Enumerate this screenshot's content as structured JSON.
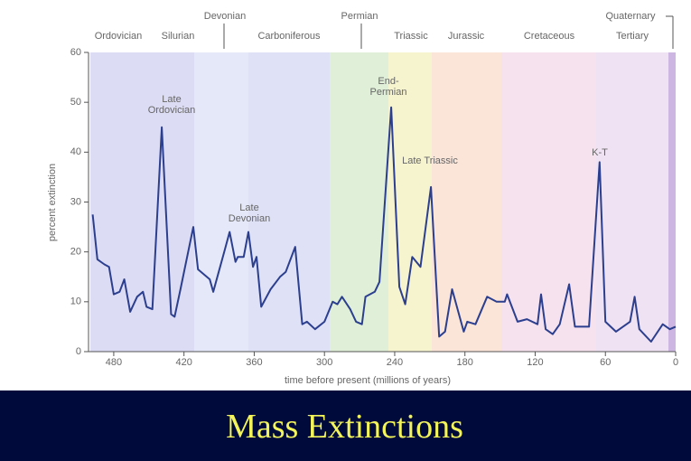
{
  "chart_data": {
    "type": "line",
    "title": "Mass Extinctions",
    "x_label": "time before present (millions of years)",
    "y_label": "percent extinction",
    "periods": [
      "Devonian",
      "Permian",
      "Quaternary",
      "Ordovician",
      "Silurian",
      "Carboniferous",
      "Triassic",
      "Jurassic",
      "Cretaceous",
      "Tertiary"
    ],
    "annotations": [
      "Late Ordovician",
      "Late Devonian",
      "End-Permian",
      "Late Triassic",
      "K-T"
    ],
    "x": [
      498,
      494,
      488,
      484,
      480,
      475,
      471,
      466,
      460,
      455,
      452,
      447,
      439,
      431,
      428,
      423,
      412,
      408,
      398,
      395,
      385,
      381,
      376,
      374,
      369,
      365,
      361,
      358,
      354,
      346,
      338,
      333,
      325,
      319,
      315,
      308,
      300,
      293,
      289,
      285,
      278,
      273,
      268,
      265,
      257,
      253,
      243,
      236,
      231,
      225,
      218,
      209,
      202,
      197,
      191,
      181,
      178,
      171,
      161,
      153,
      146,
      144,
      135,
      127,
      118,
      115,
      111,
      105,
      99,
      91,
      86,
      74,
      65,
      60,
      51,
      39,
      35,
      31,
      21,
      11,
      5,
      0
    ],
    "values": [
      27.5,
      18.5,
      17.5,
      17,
      11.5,
      12,
      14.5,
      8,
      11,
      12,
      9,
      8.5,
      45,
      7.5,
      7,
      12.5,
      25,
      16.5,
      14.5,
      12,
      20.5,
      24,
      18,
      19,
      19,
      24,
      17,
      19,
      9,
      12.5,
      15,
      16,
      21,
      5.5,
      6,
      4.5,
      6,
      10,
      9.5,
      11,
      8.5,
      6,
      5.5,
      11,
      12,
      14,
      49,
      13,
      9.5,
      19,
      17,
      33,
      3,
      4,
      12.5,
      4,
      6,
      5.5,
      11,
      10,
      10,
      11.5,
      6,
      6.5,
      5.5,
      11.5,
      4.5,
      3.5,
      5.5,
      13.5,
      5,
      5,
      38,
      6,
      4,
      6,
      11,
      4.5,
      2,
      5.5,
      4.5,
      5
    ],
    "color": "#2c3f8f",
    "xlim": [
      500,
      0
    ],
    "xticks": [
      480,
      420,
      360,
      300,
      240,
      180,
      120,
      60,
      0
    ],
    "ylim": [
      0,
      60
    ],
    "yticks": [
      0,
      10,
      20,
      30,
      40,
      50,
      60
    ]
  }
}
